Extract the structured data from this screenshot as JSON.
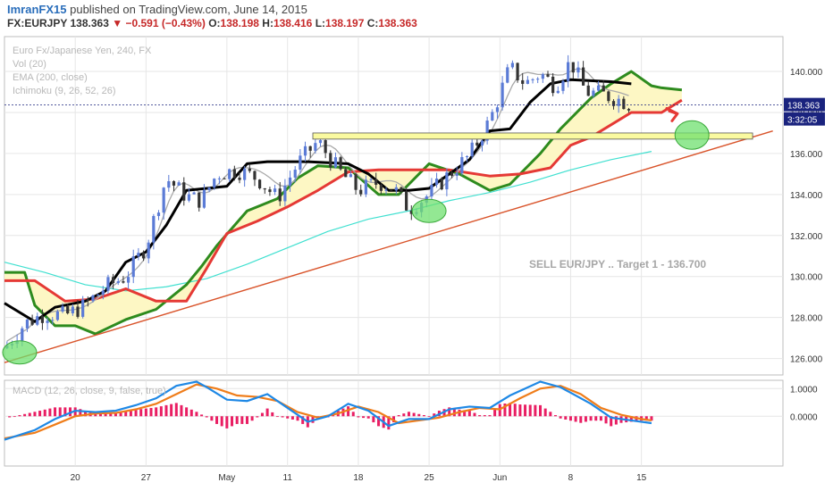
{
  "header": {
    "user": "ImranFX15",
    "published": "published on TradingView.com, June 14, 2015",
    "symbol": "FX:EURJPY",
    "last": "138.363",
    "change_arrow": "▼",
    "change": "−0.591 (−0.43%)",
    "o_label": "O:",
    "o_value": "138.198",
    "h_label": "H:",
    "h_value": "138.416",
    "l_label": "L:",
    "l_value": "138.197",
    "c_label": "C:",
    "c_value": "138.363"
  },
  "legend": [
    "Euro Fx/Japanese Yen, 240, FX",
    "Vol (20)",
    "EMA (200, close)",
    "Ichimoku (9, 26, 52, 26)"
  ],
  "macd_legend": "MACD (12, 26, close, 9, false, true)",
  "annotation": "SELL EUR/JPY .. Target 1 - 136.700",
  "last_price_label": "138.363",
  "countdown_label": "3:32:05",
  "colors": {
    "background": "#ffffff",
    "grid": "#e6e6e6",
    "up_candle": "#5b7bd6",
    "down_candle": "#333333",
    "tenkan": "#a9a9a9",
    "kijun": "#000000",
    "span_a": "#e53935",
    "span_b": "#2e8b1e",
    "cloud": "#fdf7c4",
    "ema200": "#40e0d0",
    "trendline": "#d9542b",
    "resistance_box": "#fafaa0",
    "macd_line": "#1e88e5",
    "signal_line": "#ef7d1a",
    "histogram": "#e91e63",
    "price_label_bg": "#1a237e"
  },
  "chart_data": [
    {
      "type": "candlestick",
      "title": "Euro Fx/Japanese Yen, 240, FX",
      "x_ticks": [
        "20",
        "27",
        "May",
        "11",
        "18",
        "25",
        "Jun",
        "8",
        "15"
      ],
      "x_tick_days": [
        7,
        14,
        22,
        28,
        35,
        42,
        49,
        56,
        63
      ],
      "xlim": [
        0,
        77
      ],
      "y_ticks": [
        126.0,
        128.0,
        130.0,
        132.0,
        134.0,
        136.0,
        138.0,
        140.0
      ],
      "ylim": [
        125.2,
        141.7
      ],
      "series": [
        {
          "name": "price",
          "values_source": "close",
          "x": [
            0,
            2,
            4,
            6,
            8,
            10,
            12,
            14,
            16,
            18,
            19.5,
            21,
            23,
            25,
            27,
            29,
            31,
            33,
            35,
            37,
            38.5,
            40,
            42,
            44,
            46,
            48,
            50,
            51.5,
            53,
            54.5,
            56,
            57.5,
            59,
            61,
            62
          ],
          "close": [
            126.5,
            127.7,
            128.2,
            128.1,
            128.6,
            129.5,
            130.0,
            131.5,
            134.8,
            133.9,
            133.7,
            135.0,
            135.2,
            134.8,
            133.8,
            135.5,
            136.6,
            135.2,
            134.2,
            134.6,
            134.3,
            133.3,
            134.0,
            135.0,
            135.9,
            137.6,
            140.2,
            139.4,
            139.9,
            139.3,
            140.5,
            139.0,
            138.9,
            138.6,
            138.36
          ]
        },
        {
          "name": "Kijun",
          "x": [
            0,
            3,
            5,
            8,
            10,
            12,
            14,
            16,
            18,
            20,
            22,
            24,
            26,
            30,
            34,
            36,
            38,
            40,
            42,
            44,
            46,
            48,
            50,
            52,
            54,
            56,
            60,
            62
          ],
          "values": [
            128.7,
            127.8,
            128.5,
            128.8,
            129.3,
            130.7,
            131.2,
            132.5,
            134.2,
            134.3,
            134.4,
            135.5,
            135.6,
            135.6,
            135.5,
            135.0,
            134.2,
            134.2,
            134.3,
            135.0,
            135.7,
            137.1,
            137.2,
            138.5,
            139.4,
            139.6,
            139.5,
            139.4
          ]
        },
        {
          "name": "Senkou A",
          "x": [
            0,
            3,
            6,
            9,
            12,
            15,
            18,
            20,
            22,
            25,
            28,
            31,
            34,
            37,
            40,
            44,
            48,
            51,
            54,
            56,
            58,
            62,
            65,
            67
          ],
          "values": [
            129.8,
            129.8,
            128.8,
            128.9,
            129.4,
            128.8,
            128.8,
            130.4,
            132.1,
            132.7,
            133.4,
            134.2,
            135.1,
            135.2,
            135.2,
            135.2,
            134.9,
            135.0,
            135.3,
            136.4,
            136.8,
            138.0,
            138.0,
            138.6
          ]
        },
        {
          "name": "Senkou B",
          "x": [
            0,
            2,
            3,
            5,
            7,
            9,
            12,
            15,
            18,
            19.5,
            21,
            24,
            27,
            29,
            31,
            34,
            37,
            39,
            42,
            45,
            48,
            50,
            53,
            55,
            58,
            60,
            62,
            64,
            65,
            67
          ],
          "values": [
            130.2,
            130.2,
            128.6,
            127.6,
            127.6,
            127.2,
            127.9,
            128.4,
            129.6,
            130.5,
            131.5,
            133.2,
            133.8,
            134.8,
            135.4,
            135.3,
            134.0,
            134.0,
            135.5,
            135.0,
            134.2,
            134.5,
            136.0,
            137.2,
            138.7,
            139.4,
            140.0,
            139.3,
            139.2,
            139.1
          ]
        },
        {
          "name": "EMA 200",
          "x": [
            0,
            4,
            8,
            12,
            16,
            20,
            24,
            28,
            32,
            36,
            40,
            44,
            48,
            52,
            56,
            60,
            64
          ],
          "values": [
            130.7,
            130.2,
            129.6,
            129.3,
            129.5,
            129.9,
            130.6,
            131.4,
            132.2,
            132.8,
            133.2,
            133.7,
            134.1,
            134.6,
            135.2,
            135.7,
            136.1
          ]
        },
        {
          "name": "trendline",
          "x": [
            0,
            76
          ],
          "values": [
            125.8,
            137.1
          ]
        },
        {
          "name": "resistance_zone",
          "x": [
            30.5,
            74
          ],
          "y": [
            136.7,
            137.0
          ]
        }
      ],
      "annotation": "SELL EUR/JPY .. Target 1 - 136.700"
    },
    {
      "type": "line",
      "title": "MACD (12, 26, close, 9, false, true)",
      "y_ticks": [
        1.0,
        0.0
      ],
      "ylim": [
        -1.8,
        1.3
      ],
      "series": [
        {
          "name": "MACD",
          "x": [
            0,
            3,
            5,
            7,
            9,
            11,
            13,
            15,
            17,
            19,
            20,
            22,
            24,
            26,
            28,
            30,
            32,
            34,
            36,
            38,
            40,
            42,
            44,
            46,
            48,
            50,
            53,
            55,
            58,
            60,
            62,
            64
          ],
          "values": [
            -0.85,
            -0.5,
            -0.1,
            0.2,
            0.15,
            0.2,
            0.4,
            0.65,
            1.1,
            1.25,
            1.05,
            0.6,
            0.55,
            0.8,
            0.3,
            -0.2,
            0.0,
            0.45,
            0.2,
            -0.35,
            -0.1,
            -0.1,
            0.25,
            0.35,
            0.3,
            0.75,
            1.25,
            1.05,
            0.45,
            -0.05,
            -0.15,
            -0.25
          ]
        },
        {
          "name": "Signal",
          "x": [
            0,
            3,
            5,
            7,
            9,
            11,
            13,
            15,
            17,
            19,
            21,
            23,
            25,
            27,
            29,
            31,
            33,
            35,
            37,
            39,
            41,
            43,
            45,
            47,
            49,
            51,
            53,
            55,
            57,
            59,
            61,
            63,
            64
          ],
          "values": [
            -0.8,
            -0.6,
            -0.3,
            0.0,
            0.1,
            0.12,
            0.25,
            0.45,
            0.8,
            1.15,
            1.0,
            0.75,
            0.7,
            0.55,
            0.15,
            -0.05,
            0.1,
            0.35,
            0.15,
            -0.25,
            -0.15,
            -0.05,
            0.15,
            0.3,
            0.25,
            0.65,
            1.0,
            1.1,
            0.8,
            0.3,
            0.05,
            -0.1,
            -0.15
          ]
        }
      ]
    }
  ]
}
